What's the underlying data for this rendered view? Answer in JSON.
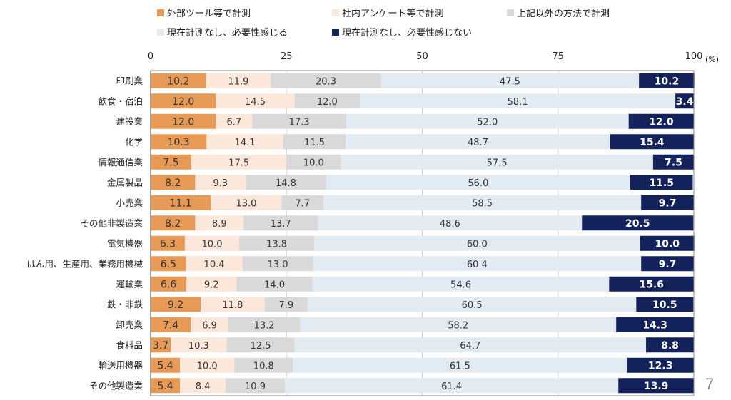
{
  "page_number": "7",
  "chart_data": {
    "type": "bar",
    "orientation": "horizontal",
    "stacked": true,
    "xlim": [
      0,
      100
    ],
    "xticks": [
      "0",
      "25",
      "50",
      "75",
      "100"
    ],
    "xunit": "(%)",
    "grid": "vertical",
    "legend_position": "top",
    "categories": [
      "印刷業",
      "飲食・宿泊",
      "建設業",
      "化学",
      "情報通信業",
      "金属製品",
      "小売業",
      "その他非製造業",
      "電気機器",
      "はん用、生産用、業務用機械",
      "運輸業",
      "鉄・非鉄",
      "卸売業",
      "食料品",
      "輸送用機器",
      "その他製造業"
    ],
    "series": [
      {
        "name": "外部ツール等で計測",
        "color": "#E69A56",
        "label_color": "#333333",
        "values": [
          10.2,
          12.0,
          12.0,
          10.3,
          7.5,
          8.2,
          11.1,
          8.2,
          6.3,
          6.5,
          6.6,
          9.2,
          7.4,
          3.7,
          5.4,
          5.4
        ]
      },
      {
        "name": "社内アンケート等で計測",
        "color": "#FCE8DB",
        "label_color": "#333333",
        "values": [
          11.9,
          14.5,
          6.7,
          14.1,
          17.5,
          9.3,
          13.0,
          8.9,
          10.0,
          10.4,
          9.2,
          11.8,
          6.9,
          10.3,
          10.0,
          8.4
        ]
      },
      {
        "name": "上記以外の方法で計測",
        "color": "#D9D9D9",
        "label_color": "#333333",
        "values": [
          20.3,
          12.0,
          17.3,
          11.5,
          10.0,
          14.8,
          7.7,
          13.7,
          13.8,
          13.0,
          14.0,
          7.9,
          13.2,
          12.5,
          10.8,
          10.9
        ]
      },
      {
        "name": "現在計測なし、必要性感じる",
        "color": "#E2EBF1",
        "label_color": "#333333",
        "values": [
          47.5,
          58.1,
          52.0,
          48.7,
          57.5,
          56.0,
          58.5,
          48.6,
          60.0,
          60.4,
          54.6,
          60.5,
          58.2,
          64.7,
          61.5,
          61.4
        ]
      },
      {
        "name": "現在計測なし、必要性感じない",
        "color": "#14225B",
        "label_color": "#FFFFFF",
        "values": [
          10.2,
          3.4,
          12.0,
          15.4,
          7.5,
          11.5,
          9.7,
          20.5,
          10.0,
          9.7,
          15.6,
          10.5,
          14.3,
          8.8,
          12.3,
          13.9
        ]
      }
    ]
  }
}
